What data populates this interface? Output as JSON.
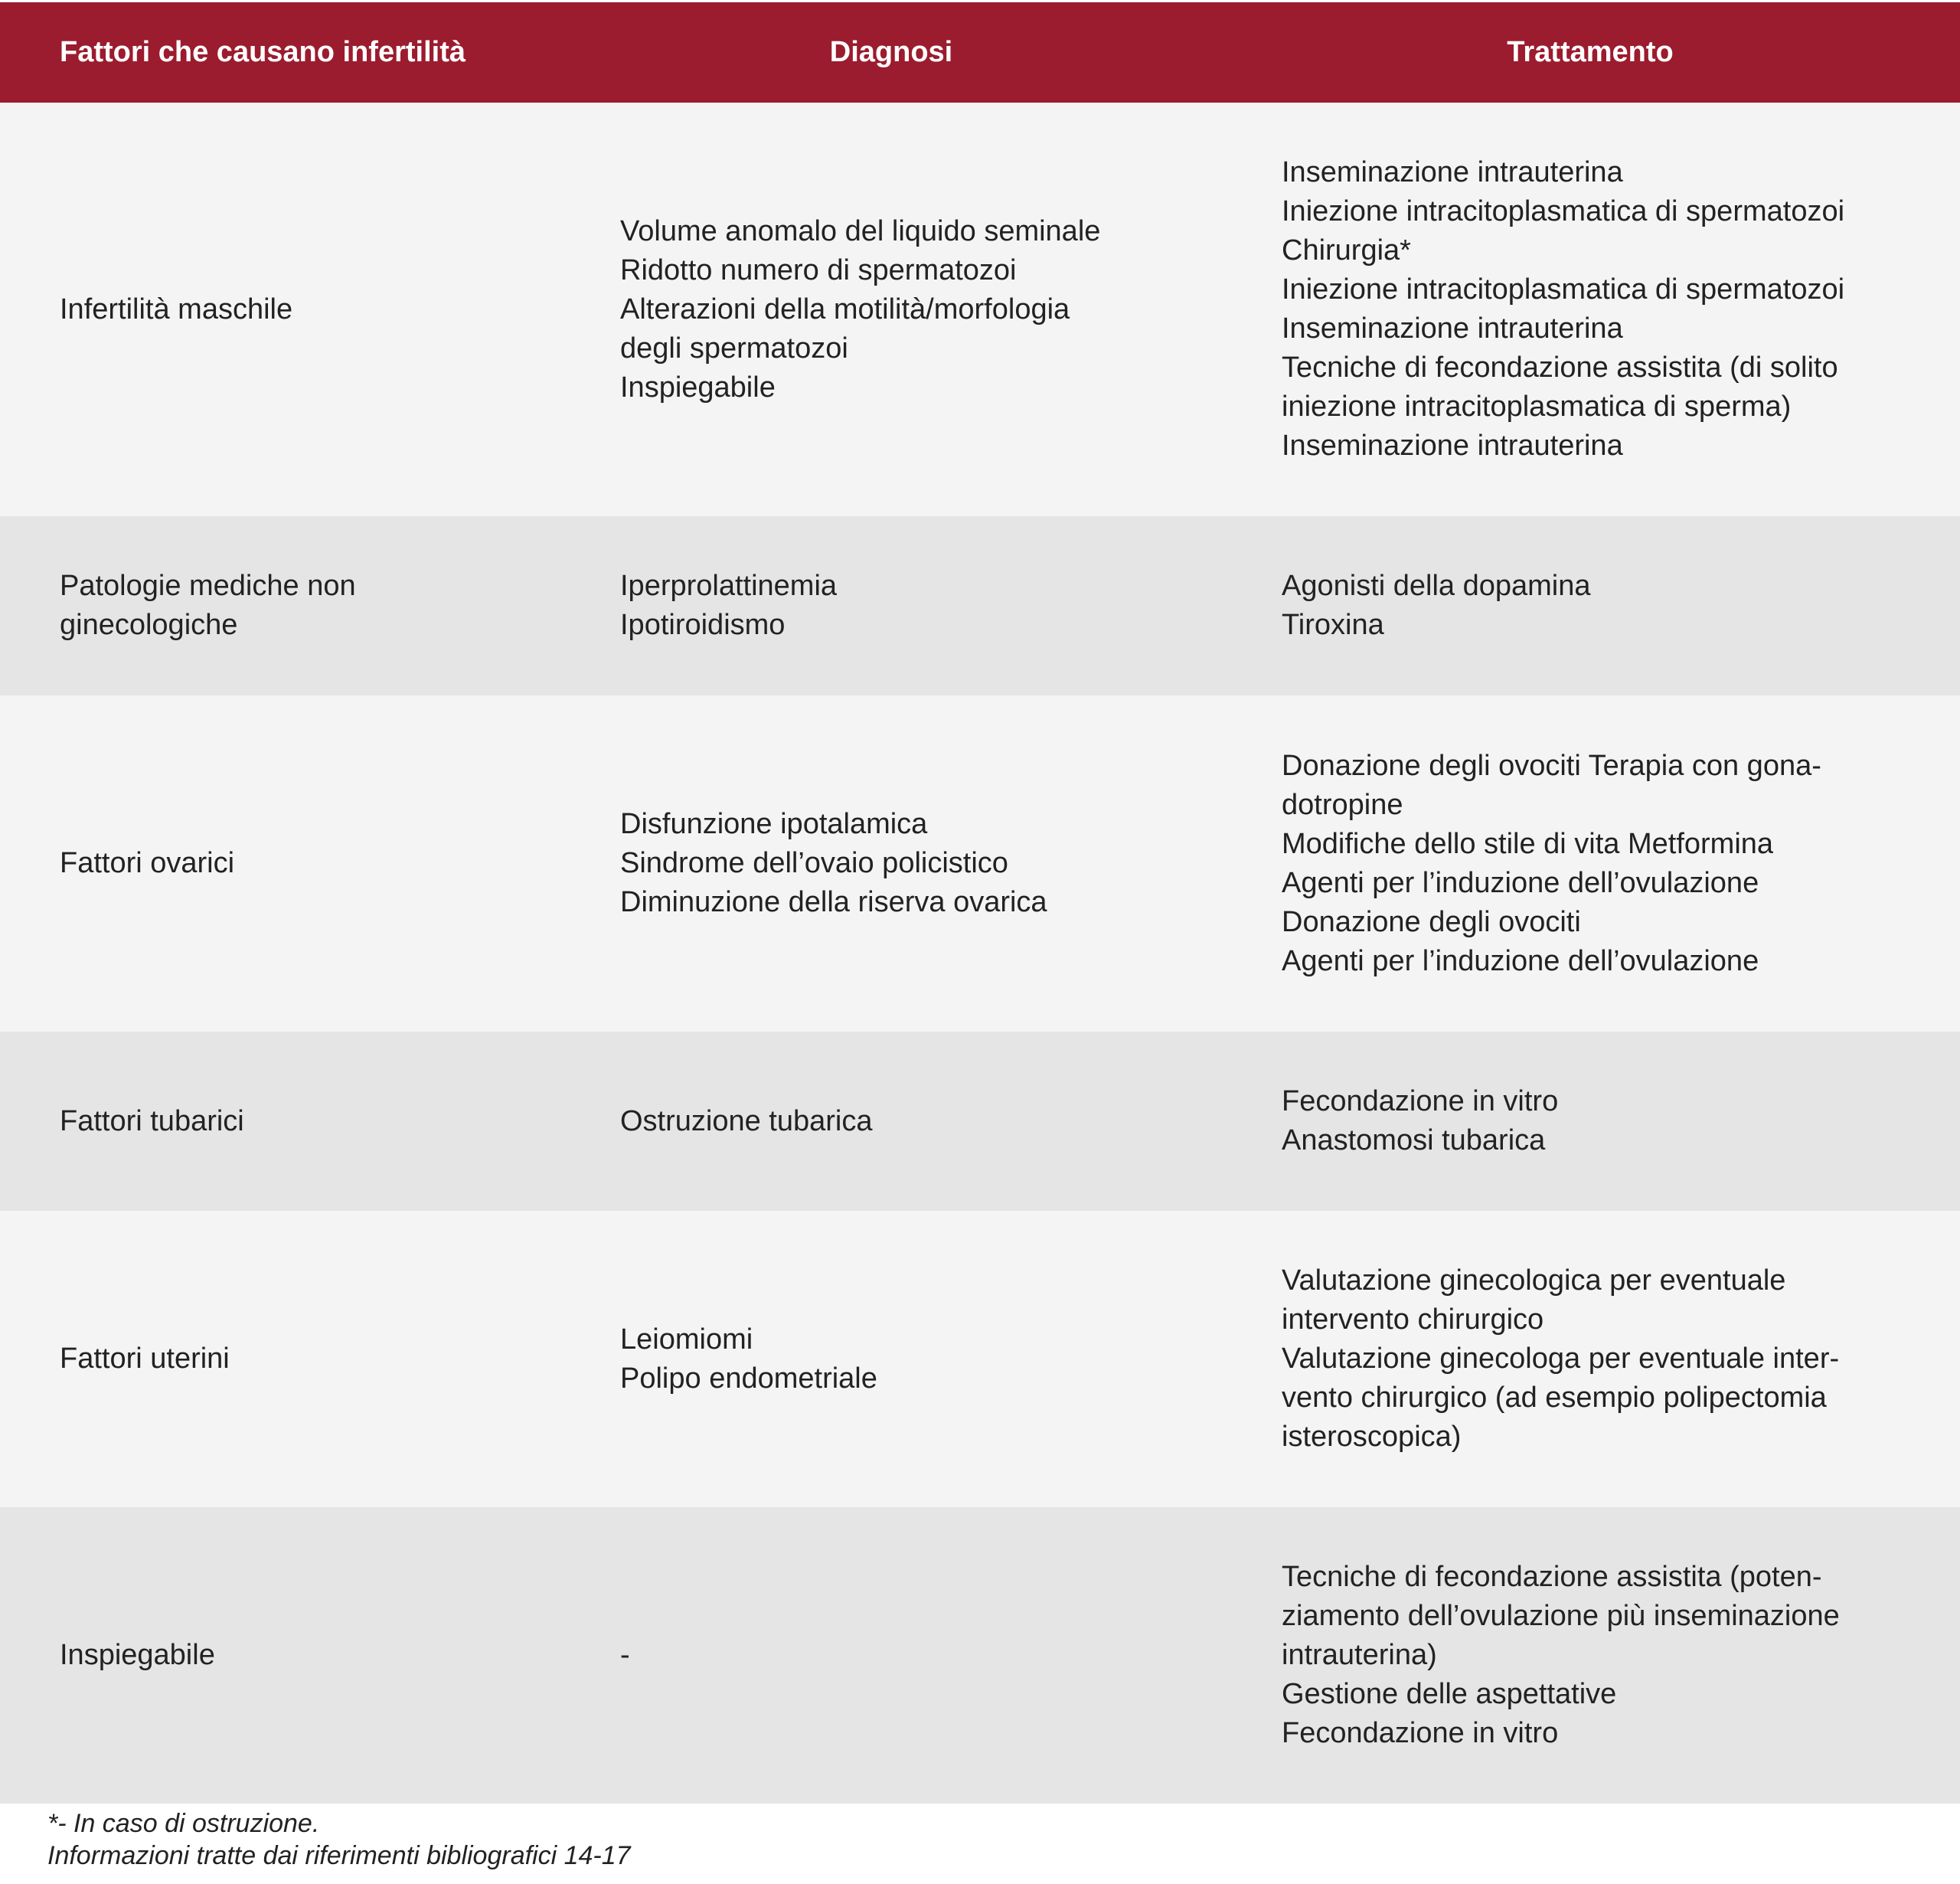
{
  "table": {
    "headers": [
      "Fattori che causano infertilità",
      "Diagnosi",
      "Trattamento"
    ],
    "colors": {
      "header_bg": "#9b1c2e",
      "row_light": "#f4f4f4",
      "row_dark": "#e5e5e5"
    },
    "rows": [
      {
        "factor": [
          "Infertilità maschile"
        ],
        "diagnosis": [
          "Volume anomalo del liquido seminale",
          "Ridotto numero di spermatozoi",
          "Alterazioni della motilità/morfologia",
          "degli spermatozoi",
          "Inspiegabile"
        ],
        "treatment": [
          "Inseminazione intrauterina",
          "Iniezione intracitoplasmatica di spermatozoi",
          "Chirurgia*",
          "Iniezione intracitoplasmatica di spermatozoi",
          "Inseminazione intrauterina",
          "Tecniche di fecondazione assistita (di solito",
          "iniezione intracitoplasmatica di sperma)",
          "Inseminazione intrauterina"
        ]
      },
      {
        "factor": [
          "Patologie mediche non",
          "ginecologiche"
        ],
        "diagnosis": [
          "Iperprolattinemia",
          "Ipotiroidismo"
        ],
        "treatment": [
          "Agonisti della dopamina",
          "Tiroxina"
        ]
      },
      {
        "factor": [
          "Fattori ovarici"
        ],
        "diagnosis": [
          "Disfunzione ipotalamica",
          "Sindrome dell’ovaio policistico",
          "Diminuzione della riserva ovarica"
        ],
        "treatment": [
          "Donazione degli ovociti Terapia con gona-",
          "dotropine",
          "Modifiche dello stile di vita Metformina",
          "Agenti per l’induzione dell’ovulazione",
          "Donazione degli ovociti",
          "Agenti per l’induzione dell’ovulazione"
        ]
      },
      {
        "factor": [
          "Fattori tubarici"
        ],
        "diagnosis": [
          "Ostruzione tubarica"
        ],
        "treatment": [
          "Fecondazione in vitro",
          "Anastomosi tubarica"
        ]
      },
      {
        "factor": [
          "Fattori uterini"
        ],
        "diagnosis": [
          "Leiomiomi",
          "Polipo endometriale"
        ],
        "treatment": [
          "Valutazione ginecologica per eventuale",
          "intervento chirurgico",
          "Valutazione ginecologa per eventuale inter-",
          "vento chirurgico (ad esempio polipectomia",
          "isteroscopica)"
        ]
      },
      {
        "factor": [
          "Inspiegabile"
        ],
        "diagnosis": [
          "-"
        ],
        "treatment": [
          "Tecniche di fecondazione assistita (poten-",
          "ziamento dell’ovulazione più inseminazione",
          "intrauterina)",
          "Gestione delle aspettative",
          "Fecondazione in vitro"
        ]
      }
    ]
  },
  "footer": {
    "note": "*- In caso di ostruzione.",
    "source": "Informazioni tratte dai riferimenti bibliografici 14-17"
  }
}
